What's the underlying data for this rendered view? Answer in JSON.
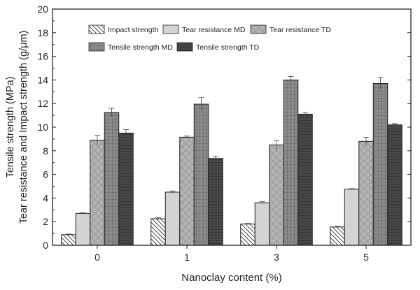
{
  "chart_data": {
    "type": "bar",
    "title": "",
    "xlabel": "Nanoclay content (%)",
    "ylabel_line1": "Tensile strength (MPa)",
    "ylabel_line2": "Tear resistance and Impact strength (g/μm)",
    "ylim": [
      0,
      20
    ],
    "yticks": [
      0,
      2,
      4,
      6,
      8,
      10,
      12,
      14,
      16,
      18,
      20
    ],
    "grid": false,
    "legend_position": "top",
    "categories": [
      "0",
      "1",
      "3",
      "5"
    ],
    "series": [
      {
        "name": "Impact strength",
        "values": [
          0.9,
          2.25,
          1.8,
          1.55
        ],
        "errors": [
          0.05,
          0.1,
          0.05,
          0.05
        ],
        "color": "#ffffff",
        "pattern": "diag-back"
      },
      {
        "name": "Tear resistance MD",
        "values": [
          2.7,
          4.5,
          3.6,
          4.75
        ],
        "errors": [
          0.05,
          0.1,
          0.1,
          0.05
        ],
        "color": "#d8d8d8",
        "pattern": "diag-fwd"
      },
      {
        "name": "Tear resistance TD",
        "values": [
          8.9,
          9.15,
          8.5,
          8.8
        ],
        "errors": [
          0.4,
          0.1,
          0.35,
          0.35
        ],
        "color": "#b0b0b0",
        "pattern": "crosshatch"
      },
      {
        "name": "Tensile strength MD",
        "values": [
          11.25,
          11.95,
          14.0,
          13.7
        ],
        "errors": [
          0.35,
          0.55,
          0.3,
          0.5
        ],
        "color": "#8a8a8a",
        "pattern": "grid"
      },
      {
        "name": "Tensile strength TD",
        "values": [
          9.5,
          7.35,
          11.1,
          10.2
        ],
        "errors": [
          0.3,
          0.2,
          0.15,
          0.1
        ],
        "color": "#404040",
        "pattern": "horizontal"
      }
    ]
  }
}
